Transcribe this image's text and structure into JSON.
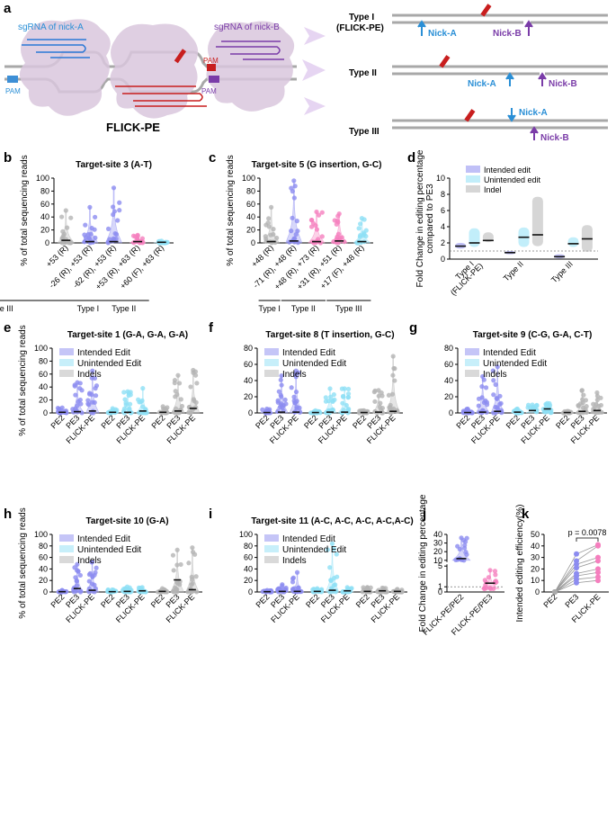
{
  "colors": {
    "intended": "#8c8cf0",
    "unintended": "#8fe0f5",
    "indel": "#b4b4b4",
    "pink": "#f57fbe",
    "blue_text": "#2a8fd6",
    "purple_text": "#7a3ca8",
    "red": "#c81e1e",
    "dna": "#b4b4b4"
  },
  "panel_a": {
    "letter": "a",
    "sgrna_a_label": "sgRNA of nick-A",
    "sgrna_b_label": "sgRNA of nick-B",
    "pam_left": "PAM",
    "pam_mid": "PAM",
    "pam_right": "PAM",
    "title": "FLICK-PE",
    "type1_label": "Type I",
    "type1_sub": "(FLICK-PE)",
    "type2_label": "Type II",
    "type3_label": "Type III",
    "nick_a": "Nick-A",
    "nick_b": "Nick-B"
  },
  "chart_data": [
    {
      "id": "b",
      "type": "violin",
      "letter": "b",
      "title": "Target-site 3 (A-T)",
      "ylabel": "% of total sequencing reads",
      "ylim": [
        0,
        100
      ],
      "yticks": [
        0,
        20,
        40,
        60,
        80,
        100
      ],
      "categories": [
        "+53 (R)",
        "-26 (R), +53 (R)",
        "-62 (R), +53 (R)",
        "+53 (R), +63 (R)",
        "+60 (F), +63 (R)"
      ],
      "color_keys": [
        "indel",
        "intended",
        "intended",
        "pink",
        "unintended"
      ],
      "medians": [
        4,
        2,
        2,
        2,
        1
      ],
      "maxima": [
        50,
        55,
        85,
        12,
        3
      ],
      "groups": [
        {
          "label": "Type I",
          "from": 1,
          "to": 1
        },
        {
          "label": "Type II",
          "from": 2,
          "to": 3
        },
        {
          "label": "Type III",
          "from": 4,
          "to": 5
        }
      ]
    },
    {
      "id": "c",
      "type": "violin",
      "letter": "c",
      "title": "Target-site 5 (G insertion, G-C)",
      "ylabel": "% of total sequencing reads",
      "ylim": [
        0,
        100
      ],
      "yticks": [
        0,
        20,
        40,
        60,
        80,
        100
      ],
      "categories": [
        "+48 (R)",
        "-71 (R), +48 (R)",
        "+48 (R), +73 (R)",
        "+31 (R), +51 (R)",
        "+17 (F), +48 (R)"
      ],
      "color_keys": [
        "indel",
        "intended",
        "pink",
        "pink",
        "unintended"
      ],
      "medians": [
        2,
        3,
        2,
        3,
        2
      ],
      "maxima": [
        55,
        96,
        48,
        45,
        38
      ],
      "groups": [
        {
          "label": "Type I",
          "from": 0,
          "to": 0
        },
        {
          "label": "Type II",
          "from": 1,
          "to": 2
        },
        {
          "label": "Type III",
          "from": 3,
          "to": 4
        }
      ]
    },
    {
      "id": "d",
      "type": "floating-bar",
      "letter": "d",
      "ylabel": "Fold Change in editing percentage compared to PE3",
      "ylabel_line1": "Fold Change in editing percentage",
      "ylabel_line2": "compared to PE3",
      "ylim": [
        0,
        10
      ],
      "yticks": [
        0,
        2,
        4,
        6,
        8,
        10
      ],
      "reference_line": 1,
      "categories": [
        "Type I",
        "Type II",
        "Type III"
      ],
      "category_sub": [
        "(FLICK-PE)",
        "",
        ""
      ],
      "legend": [
        "Intended edit",
        "Unintended edit",
        "Indel"
      ],
      "series": [
        {
          "name": "Intended edit",
          "low": [
            1.3,
            0.6,
            0.1
          ],
          "high": [
            2.0,
            1.0,
            0.6
          ],
          "mean": [
            1.6,
            0.8,
            0.3
          ]
        },
        {
          "name": "Unintended edit",
          "low": [
            1.5,
            1.5,
            1.5
          ],
          "high": [
            3.8,
            3.9,
            2.7
          ],
          "mean": [
            2.0,
            2.7,
            1.9
          ]
        },
        {
          "name": "Indel",
          "low": [
            2.1,
            1.6,
            0.9
          ],
          "high": [
            3.3,
            7.7,
            4.2
          ],
          "mean": [
            2.3,
            3.0,
            2.5
          ]
        }
      ]
    },
    {
      "id": "e",
      "type": "violin",
      "letter": "e",
      "title": "Target-site 1 (G-A, G-A, G-A)",
      "ylabel": "% of total sequencing reads",
      "ylim": [
        0,
        100
      ],
      "yticks": [
        0,
        20,
        40,
        60,
        80,
        100
      ],
      "legend": [
        "Intended Edit",
        "Unintended Edit",
        "Indels"
      ],
      "categories": [
        "PE2",
        "PE3",
        "FLICK-PE",
        "PE2",
        "PE3",
        "FLICK-PE",
        "PE2",
        "PE3",
        "FLICK-PE"
      ],
      "color_keys": [
        "intended",
        "intended",
        "intended",
        "unintended",
        "unintended",
        "unintended",
        "indel",
        "indel",
        "indel"
      ],
      "medians": [
        1,
        2,
        3,
        1,
        1,
        3,
        1,
        3,
        7
      ],
      "maxima": [
        8,
        47,
        65,
        7,
        33,
        38,
        10,
        58,
        66
      ]
    },
    {
      "id": "f",
      "type": "violin",
      "letter": "f",
      "title": "Target-site 8 (T insertion, G-C)",
      "ylabel": "",
      "ylim": [
        0,
        80
      ],
      "yticks": [
        0,
        20,
        40,
        60,
        80
      ],
      "legend": [
        "Intended Edit",
        "Unintended Edit",
        "Indels"
      ],
      "categories": [
        "PE2",
        "PE3",
        "FLICK-PE",
        "PE2",
        "PE3",
        "FLICK-PE",
        "PE2",
        "PE3",
        "FLICK-PE"
      ],
      "color_keys": [
        "intended",
        "intended",
        "intended",
        "unintended",
        "unintended",
        "unintended",
        "indel",
        "indel",
        "indel"
      ],
      "medians": [
        0.5,
        1,
        1,
        0.5,
        1,
        1,
        0.5,
        1,
        2
      ],
      "maxima": [
        5,
        46,
        52,
        3,
        30,
        30,
        3,
        28,
        70
      ]
    },
    {
      "id": "g",
      "type": "violin",
      "letter": "g",
      "title": "Target-site 9 (C-G, G-A, C-T)",
      "ylabel": "",
      "ylim": [
        0,
        80
      ],
      "yticks": [
        0,
        20,
        40,
        60,
        80
      ],
      "legend": [
        "Intended Edit",
        "Unintended Edit",
        "Indels"
      ],
      "categories": [
        "PE2",
        "PE3",
        "FLICK-PE",
        "PE2",
        "PE3",
        "FLICK-PE",
        "PE2",
        "PE3",
        "FLICK-PE"
      ],
      "color_keys": [
        "intended",
        "intended",
        "intended",
        "unintended",
        "unintended",
        "unintended",
        "indel",
        "indel",
        "indel"
      ],
      "medians": [
        0.5,
        1,
        2,
        1,
        3,
        5,
        0.5,
        2,
        3
      ],
      "maxima": [
        5,
        45,
        57,
        5,
        10,
        12,
        2,
        28,
        25
      ]
    },
    {
      "id": "h",
      "type": "violin",
      "letter": "h",
      "title": "Target-site 10 (G-A)",
      "ylabel": "% of total sequencing reads",
      "ylim": [
        0,
        100
      ],
      "yticks": [
        0,
        20,
        40,
        60,
        80,
        100
      ],
      "legend": [
        "Intended Edit",
        "Unintended Edit",
        "Indels"
      ],
      "categories": [
        "PE2",
        "PE3",
        "FLICK-PE",
        "PE2",
        "PE3",
        "FLICK-PE",
        "PE2",
        "PE3",
        "FLICK-PE"
      ],
      "color_keys": [
        "intended",
        "intended",
        "intended",
        "unintended",
        "unintended",
        "unintended",
        "indel",
        "indel",
        "indel"
      ],
      "medians": [
        0.5,
        6,
        3,
        0.5,
        1,
        2,
        1,
        21,
        4
      ],
      "maxima": [
        3,
        48,
        52,
        4,
        9,
        8,
        6,
        73,
        77
      ]
    },
    {
      "id": "i",
      "type": "violin",
      "letter": "i",
      "title": "Target-site 11 (A-C, A-C, A-C, A-C,A-C)",
      "ylabel": "",
      "ylim": [
        0,
        100
      ],
      "yticks": [
        0,
        20,
        40,
        60,
        80,
        100
      ],
      "legend": [
        "Intended Edit",
        "Unintended Edit",
        "Indels"
      ],
      "categories": [
        "PE2",
        "PE3",
        "FLICK-PE",
        "PE2",
        "PE3",
        "FLICK-PE",
        "PE2",
        "PE3",
        "FLICK-PE"
      ],
      "color_keys": [
        "intended",
        "intended",
        "intended",
        "unintended",
        "unintended",
        "unintended",
        "indel",
        "indel",
        "indel"
      ],
      "medians": [
        0.5,
        1,
        1,
        1,
        3,
        2,
        1,
        2,
        1
      ],
      "maxima": [
        3,
        13,
        34,
        6,
        84,
        8,
        8,
        7,
        5
      ]
    },
    {
      "id": "j",
      "type": "violin",
      "letter": "j",
      "ylabel": "Fold Change in editing percentage",
      "ylim": [
        0,
        40
      ],
      "yticks": [
        0,
        1,
        5,
        10,
        20,
        30,
        40
      ],
      "axis_break": [
        5,
        10
      ],
      "reference_line": 1,
      "categories": [
        "FLICK-PE/PE2",
        "FLICK-PE/PE3"
      ],
      "color_keys": [
        "intended",
        "pink"
      ],
      "medians": [
        12,
        1.7
      ],
      "maxima": [
        36,
        4.2
      ],
      "minima": [
        10,
        0.6
      ]
    },
    {
      "id": "k",
      "type": "paired-line",
      "letter": "k",
      "ylabel": "Intended editing efficiency(%)",
      "ylim": [
        0,
        50
      ],
      "yticks": [
        "0",
        "10",
        "20",
        "30",
        "40",
        "50"
      ],
      "categories": [
        "PE2",
        "PE3",
        "FLICK-PE"
      ],
      "annotation": "p = 0.0078",
      "series": [
        {
          "name": "s1",
          "values": [
            0,
            33,
            41
          ]
        },
        {
          "name": "s2",
          "values": [
            0,
            27,
            40
          ]
        },
        {
          "name": "s3",
          "values": [
            0,
            24,
            30
          ]
        },
        {
          "name": "s4",
          "values": [
            0,
            21,
            27
          ]
        },
        {
          "name": "s5",
          "values": [
            0,
            16,
            20
          ]
        },
        {
          "name": "s6",
          "values": [
            0,
            14,
            17
          ]
        },
        {
          "name": "s7",
          "values": [
            0,
            11,
            13
          ]
        },
        {
          "name": "s8",
          "values": [
            0,
            8,
            10
          ]
        }
      ]
    }
  ]
}
